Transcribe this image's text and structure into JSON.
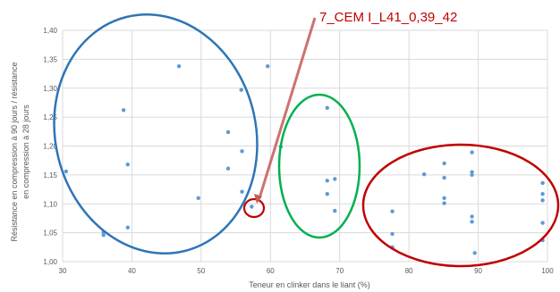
{
  "chart_data": {
    "type": "scatter",
    "title": "",
    "xlabel": "Teneur en clinker dans le liant (%)",
    "ylabel_line1": "Résistance en compression à 90 jours / résistance",
    "ylabel_line2": "en compression à 28 jours",
    "xlim": [
      30,
      100
    ],
    "ylim": [
      1.0,
      1.4
    ],
    "x_ticks": [
      30,
      40,
      50,
      60,
      70,
      80,
      90,
      100
    ],
    "y_ticks": [
      1.0,
      1.05,
      1.1,
      1.15,
      1.2,
      1.25,
      1.3,
      1.35,
      1.4
    ],
    "x_tick_labels": [
      "30",
      "40",
      "50",
      "60",
      "70",
      "80",
      "90",
      "100"
    ],
    "y_tick_labels": [
      "1,00",
      "1,05",
      "1,10",
      "1,15",
      "1,20",
      "1,25",
      "1,30",
      "1,35",
      "1,40"
    ],
    "grid": true,
    "marker_color": "#5B9BD5",
    "points": [
      {
        "x": 30.5,
        "y": 1.156
      },
      {
        "x": 35.9,
        "y": 1.051
      },
      {
        "x": 35.9,
        "y": 1.046
      },
      {
        "x": 38.8,
        "y": 1.262
      },
      {
        "x": 39.4,
        "y": 1.168
      },
      {
        "x": 39.4,
        "y": 1.059
      },
      {
        "x": 46.8,
        "y": 1.338
      },
      {
        "x": 49.6,
        "y": 1.11
      },
      {
        "x": 53.9,
        "y": 1.224
      },
      {
        "x": 53.9,
        "y": 1.161
      },
      {
        "x": 55.8,
        "y": 1.297
      },
      {
        "x": 55.9,
        "y": 1.191
      },
      {
        "x": 55.9,
        "y": 1.121
      },
      {
        "x": 57.3,
        "y": 1.095
      },
      {
        "x": 59.6,
        "y": 1.338
      },
      {
        "x": 61.5,
        "y": 1.199
      },
      {
        "x": 68.2,
        "y": 1.266
      },
      {
        "x": 68.2,
        "y": 1.14
      },
      {
        "x": 68.2,
        "y": 1.117
      },
      {
        "x": 69.3,
        "y": 1.143
      },
      {
        "x": 69.3,
        "y": 1.088
      },
      {
        "x": 77.6,
        "y": 1.087
      },
      {
        "x": 77.6,
        "y": 1.048
      },
      {
        "x": 77.6,
        "y": 1.025
      },
      {
        "x": 82.2,
        "y": 1.151
      },
      {
        "x": 85.1,
        "y": 1.17
      },
      {
        "x": 85.1,
        "y": 1.145
      },
      {
        "x": 85.1,
        "y": 1.11
      },
      {
        "x": 85.1,
        "y": 1.101
      },
      {
        "x": 89.1,
        "y": 1.189
      },
      {
        "x": 89.1,
        "y": 1.155
      },
      {
        "x": 89.1,
        "y": 1.15
      },
      {
        "x": 89.1,
        "y": 1.078
      },
      {
        "x": 89.1,
        "y": 1.069
      },
      {
        "x": 89.5,
        "y": 1.015
      },
      {
        "x": 99.3,
        "y": 1.136
      },
      {
        "x": 99.3,
        "y": 1.117
      },
      {
        "x": 99.3,
        "y": 1.106
      },
      {
        "x": 99.3,
        "y": 1.067
      },
      {
        "x": 99.3,
        "y": 1.037
      }
    ],
    "annotation": {
      "text": "7_CEM I_L41_0,39_42",
      "color": "#C00000",
      "target": {
        "x": 57.3,
        "y": 1.095
      }
    },
    "groups": [
      {
        "name": "group-blue",
        "color": "#2E75B6"
      },
      {
        "name": "group-green",
        "color": "#00B050"
      },
      {
        "name": "group-red",
        "color": "#C00000"
      }
    ]
  }
}
